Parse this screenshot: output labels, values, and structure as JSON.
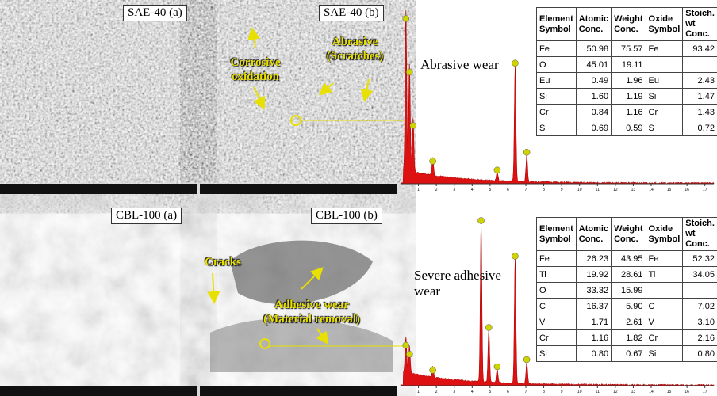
{
  "panels": [
    {
      "label": "SAE-40 (a)"
    },
    {
      "label": "SAE-40 (b)",
      "annotations": [
        "Corrosive oxidation",
        "Abrasive (Scratches)"
      ]
    },
    {
      "label": "CBL-100 (a)"
    },
    {
      "label": "CBL-100 (b)",
      "annotations": [
        "Cracks",
        "Adhesive wear (Material removal)"
      ]
    }
  ],
  "spectra": [
    {
      "caption": "Abrasive wear",
      "table": {
        "header": [
          "Element Symbol",
          "Atomic Conc.",
          "Weight Conc.",
          "Oxide Symbol",
          "Stoich. wt Conc."
        ],
        "rows": [
          [
            "Fe",
            "50.98",
            "75.57",
            "Fe",
            "93.42"
          ],
          [
            "O",
            "45.01",
            "19.11",
            null,
            null
          ],
          [
            "Eu",
            "0.49",
            "1.96",
            "Eu",
            "2.43"
          ],
          [
            "Si",
            "1.60",
            "1.19",
            "Si",
            "1.47"
          ],
          [
            "Cr",
            "0.84",
            "1.16",
            "Cr",
            "1.43"
          ],
          [
            "S",
            "0.69",
            "0.59",
            "S",
            "0.72"
          ]
        ]
      }
    },
    {
      "caption": "Severe adhesive wear",
      "table": {
        "header": [
          "Element Symbol",
          "Atomic Conc.",
          "Weight Conc.",
          "Oxide Symbol",
          "Stoich. wt Conc."
        ],
        "rows": [
          [
            "Fe",
            "26.23",
            "43.95",
            "Fe",
            "52.32"
          ],
          [
            "Ti",
            "19.92",
            "28.61",
            "Ti",
            "34.05"
          ],
          [
            "O",
            "33.32",
            "15.99",
            null,
            null
          ],
          [
            "C",
            "16.37",
            "5.90",
            "C",
            "7.02"
          ],
          [
            "V",
            "1.71",
            "2.61",
            "V",
            "3.10"
          ],
          [
            "Cr",
            "1.16",
            "1.82",
            "Cr",
            "2.16"
          ],
          [
            "Si",
            "0.80",
            "0.67",
            "Si",
            "0.80"
          ]
        ]
      }
    }
  ],
  "xticks": [
    1,
    2,
    3,
    4,
    5,
    6,
    7,
    8,
    9,
    10,
    11,
    12,
    13,
    14,
    15,
    16,
    17
  ]
}
